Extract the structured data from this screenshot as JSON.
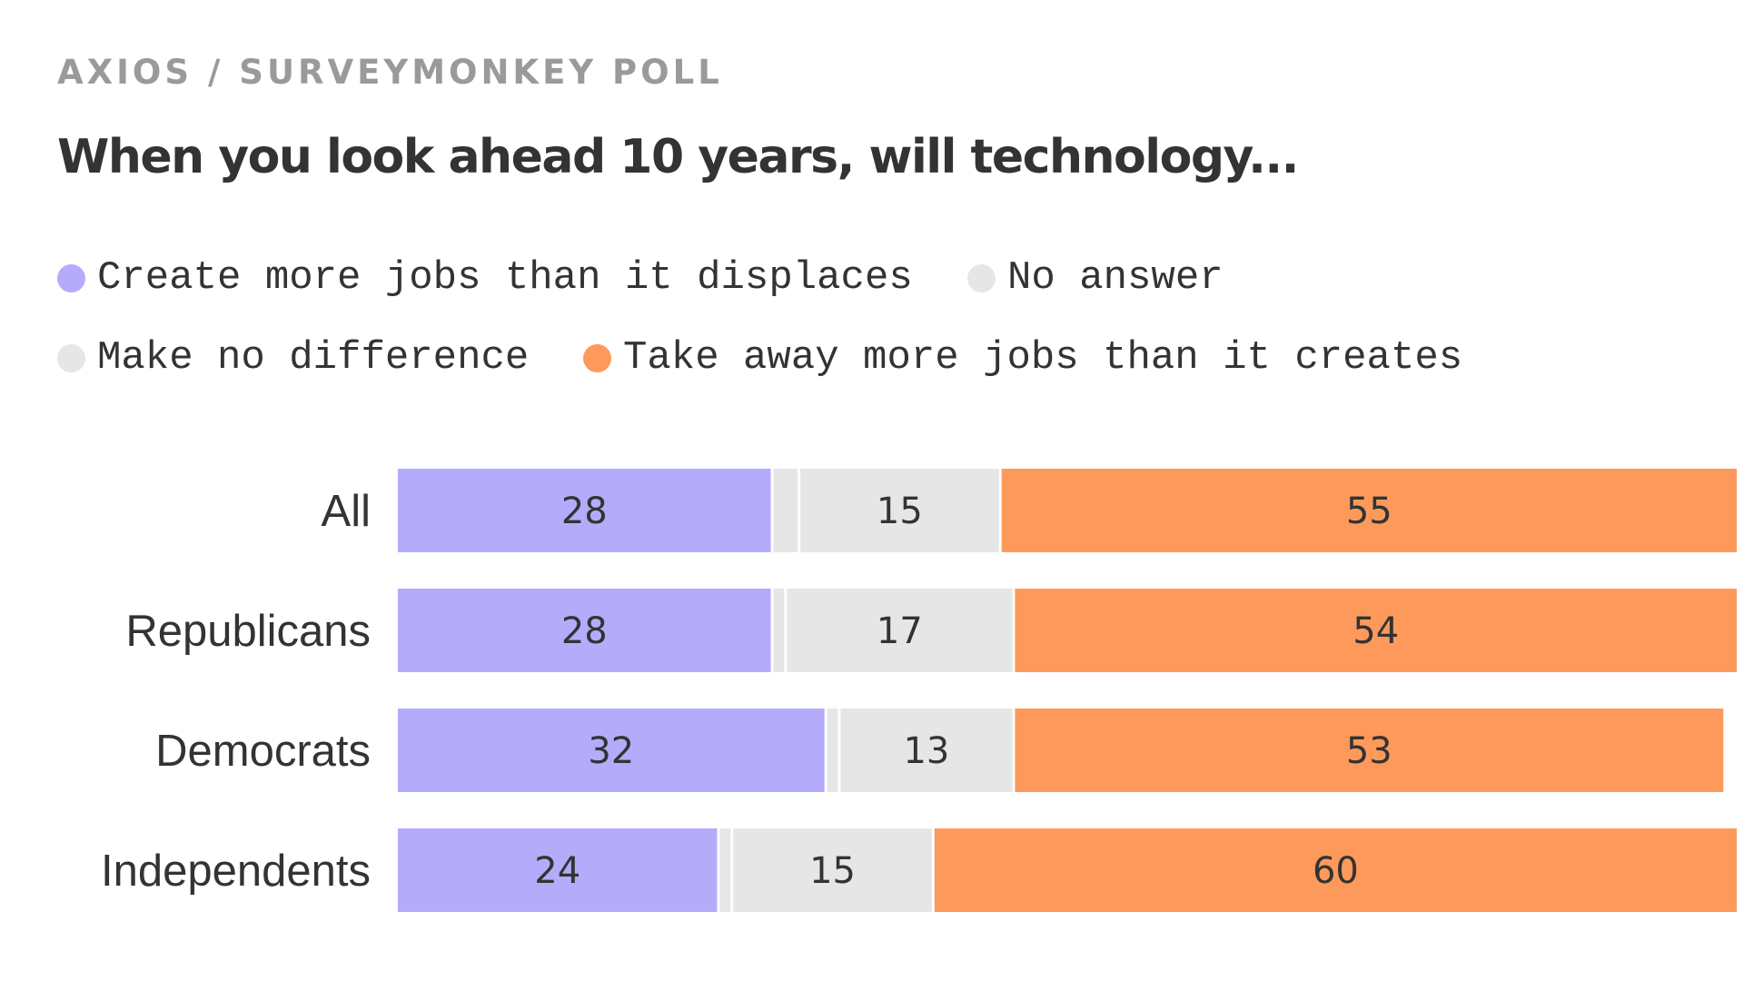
{
  "header": {
    "source": "AXIOS / SURVEYMONKEY POLL",
    "title": "When you look ahead 10 years, will technology..."
  },
  "legend": [
    {
      "label": "Create more jobs than it displaces",
      "color": "#b4acfb"
    },
    {
      "label": "No answer",
      "color": "#e6e6e6"
    },
    {
      "label": "Make no difference",
      "color": "#e6e6e6"
    },
    {
      "label": "Take away more jobs than it creates",
      "color": "#fd9a5b"
    }
  ],
  "chart_data": {
    "type": "bar",
    "orientation": "horizontal",
    "stacked": true,
    "categories": [
      "All",
      "Republicans",
      "Democrats",
      "Independents"
    ],
    "series": [
      {
        "name": "Create more jobs than it displaces",
        "values": [
          28,
          28,
          32,
          24
        ],
        "color": "#b4acfb",
        "labels": [
          "28",
          "28",
          "32",
          "24"
        ]
      },
      {
        "name": "No answer",
        "values": [
          2,
          1,
          1,
          1
        ],
        "color": "#e6e6e6",
        "labels": [
          "",
          "",
          "",
          ""
        ]
      },
      {
        "name": "Make no difference",
        "values": [
          15,
          17,
          13,
          15
        ],
        "color": "#e6e6e6",
        "labels": [
          "15",
          "17",
          "13",
          "15"
        ]
      },
      {
        "name": "Take away more jobs than it creates",
        "values": [
          55,
          54,
          53,
          60
        ],
        "color": "#fd9a5b",
        "labels": [
          "55",
          "54",
          "53",
          "60"
        ]
      }
    ],
    "xlim": [
      0,
      100
    ],
    "grid": false,
    "legend_position": "top-left"
  }
}
